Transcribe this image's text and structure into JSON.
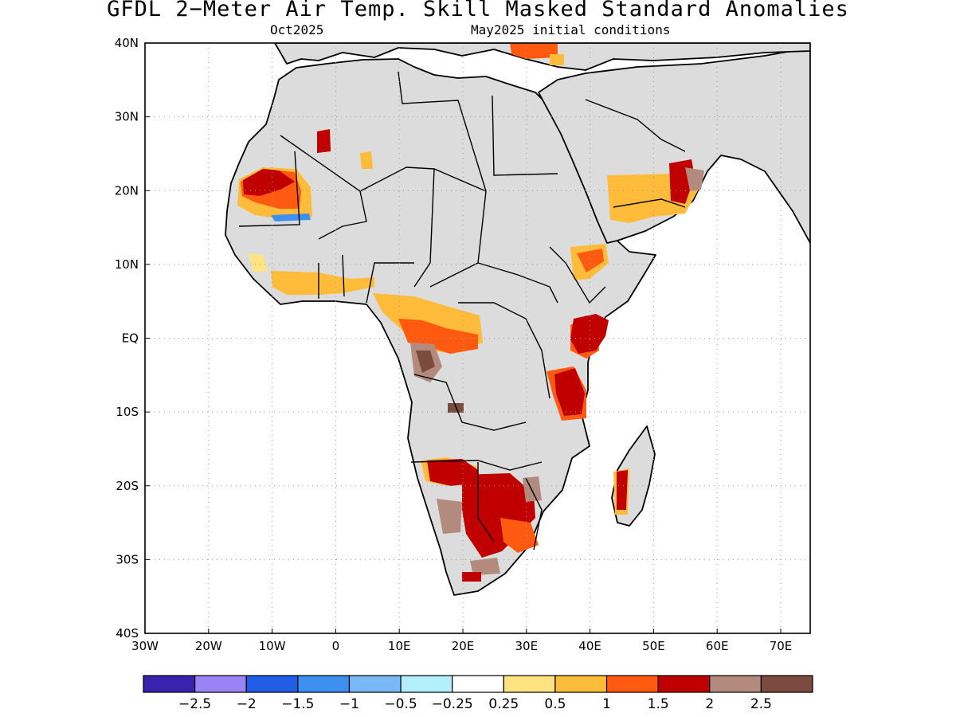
{
  "title": "GFDL 2−Meter Air Temp. Skill Masked Standard Anomalies",
  "subtitle_left": "Oct2025",
  "subtitle_right": "May2025 initial conditions",
  "axes": {
    "lon_ticks": [
      "30W",
      "20W",
      "10W",
      "0",
      "10E",
      "20E",
      "30E",
      "40E",
      "50E",
      "60E",
      "70E"
    ],
    "lat_ticks": [
      "40N",
      "30N",
      "20N",
      "10N",
      "EQ",
      "10S",
      "20S",
      "30S",
      "40S"
    ]
  },
  "colorbar": {
    "colors": [
      "#3a22b0",
      "#9a83f5",
      "#1f5ee5",
      "#3d8ff0",
      "#78b8f7",
      "#b2effa",
      "#ffffff",
      "#ffe382",
      "#ffbb3a",
      "#ff5a10",
      "#c00000",
      "#b38a7e",
      "#7a4b3e"
    ],
    "labels": [
      "−2.5",
      "−2",
      "−1.5",
      "−1",
      "−0.5",
      "−0.25",
      "0.25",
      "0.5",
      "1",
      "1.5",
      "2",
      "2.5"
    ]
  },
  "colors": {
    "land_mask": "#dcdcdc",
    "ocean": "#ffffff"
  }
}
